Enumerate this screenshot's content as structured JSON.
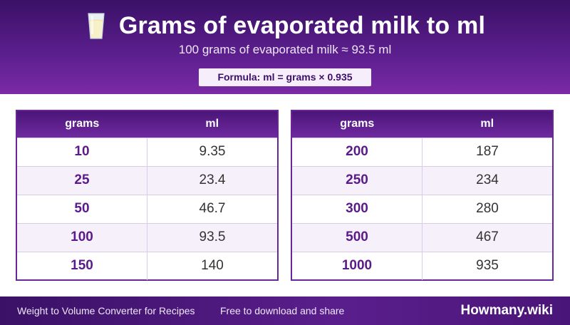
{
  "header": {
    "title": "Grams of evaporated milk to ml",
    "subtitle": "100 grams of evaporated milk ≈ 93.5 ml",
    "formula": "Formula: ml = grams × 0.935",
    "icon": "milk-glass-icon"
  },
  "columns": {
    "grams": "grams",
    "ml": "ml"
  },
  "table_left": [
    {
      "grams": "10",
      "ml": "9.35"
    },
    {
      "grams": "25",
      "ml": "23.4"
    },
    {
      "grams": "50",
      "ml": "46.7"
    },
    {
      "grams": "100",
      "ml": "93.5"
    },
    {
      "grams": "150",
      "ml": "140"
    }
  ],
  "table_right": [
    {
      "grams": "200",
      "ml": "187"
    },
    {
      "grams": "250",
      "ml": "234"
    },
    {
      "grams": "300",
      "ml": "280"
    },
    {
      "grams": "500",
      "ml": "467"
    },
    {
      "grams": "1000",
      "ml": "935"
    }
  ],
  "footer": {
    "left": "Weight to Volume Converter for Recipes",
    "middle": "Free to download and share",
    "brand": "Howmany.wiki"
  },
  "colors": {
    "brand_purple": "#5a1e8c",
    "accent_text": "#5a1a8a",
    "alt_row": "#f5f0fa"
  }
}
